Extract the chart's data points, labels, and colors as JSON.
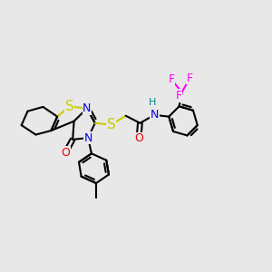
{
  "bg_color": "#e8e8e8",
  "atom_colors": {
    "C": "#000000",
    "N": "#0000ee",
    "O": "#ee0000",
    "S": "#cccc00",
    "F": "#ff00ff",
    "H": "#008888"
  },
  "bond_color": "#000000",
  "bond_width": 1.5,
  "dbo": 0.008,
  "font_size": 9,
  "fig_width": 3.0,
  "fig_height": 3.0,
  "dpi": 100
}
